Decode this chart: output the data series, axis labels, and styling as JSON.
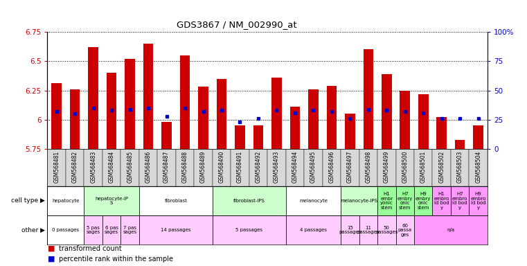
{
  "title": "GDS3867 / NM_002990_at",
  "samples": [
    "GSM568481",
    "GSM568482",
    "GSM568483",
    "GSM568484",
    "GSM568485",
    "GSM568486",
    "GSM568487",
    "GSM568488",
    "GSM568489",
    "GSM568490",
    "GSM568491",
    "GSM568492",
    "GSM568493",
    "GSM568494",
    "GSM568495",
    "GSM568496",
    "GSM568497",
    "GSM568498",
    "GSM568499",
    "GSM568500",
    "GSM568501",
    "GSM568502",
    "GSM568503",
    "GSM568504"
  ],
  "red_values": [
    6.31,
    6.26,
    6.62,
    6.4,
    6.52,
    6.65,
    5.98,
    6.55,
    6.28,
    6.35,
    5.95,
    5.95,
    6.36,
    6.11,
    6.26,
    6.29,
    6.05,
    6.6,
    6.39,
    6.25,
    6.22,
    6.02,
    5.83,
    5.95
  ],
  "blue_values": [
    6.07,
    6.05,
    6.1,
    6.08,
    6.09,
    6.1,
    6.03,
    6.1,
    6.07,
    6.08,
    5.98,
    6.01,
    6.08,
    6.06,
    6.08,
    6.07,
    6.01,
    6.09,
    6.08,
    6.07,
    6.06,
    6.01,
    6.01,
    6.01
  ],
  "ymin": 5.75,
  "ymax": 6.75,
  "yticks": [
    5.75,
    6.0,
    6.25,
    6.5,
    6.75
  ],
  "ytick_labels": [
    "5.75",
    "6",
    "6.25",
    "6.5",
    "6.75"
  ],
  "right_ytick_pcts": [
    0,
    25,
    50,
    75,
    100
  ],
  "right_ytick_labels": [
    "0",
    "25",
    "50",
    "75",
    "100%"
  ],
  "cell_types": [
    {
      "label": "hepatocyte",
      "start": 0,
      "end": 2,
      "color": "#ffffff"
    },
    {
      "label": "hepatocyte-iP\nS",
      "start": 2,
      "end": 5,
      "color": "#ccffcc"
    },
    {
      "label": "fibroblast",
      "start": 5,
      "end": 9,
      "color": "#ffffff"
    },
    {
      "label": "fibroblast-IPS",
      "start": 9,
      "end": 13,
      "color": "#ccffcc"
    },
    {
      "label": "melanocyte",
      "start": 13,
      "end": 16,
      "color": "#ffffff"
    },
    {
      "label": "melanocyte-IPS",
      "start": 16,
      "end": 18,
      "color": "#ccffcc"
    },
    {
      "label": "H1\nembr\nyonic\nstem",
      "start": 18,
      "end": 19,
      "color": "#99ff99"
    },
    {
      "label": "H7\nembry\nonic\nstem",
      "start": 19,
      "end": 20,
      "color": "#99ff99"
    },
    {
      "label": "H9\nembry\nonic\nstem",
      "start": 20,
      "end": 21,
      "color": "#99ff99"
    },
    {
      "label": "H1\nembro\nid bod\ny",
      "start": 21,
      "end": 22,
      "color": "#ff99ff"
    },
    {
      "label": "H7\nembro\nid bod\ny",
      "start": 22,
      "end": 23,
      "color": "#ff99ff"
    },
    {
      "label": "H9\nembro\nid bod\ny",
      "start": 23,
      "end": 24,
      "color": "#ff99ff"
    }
  ],
  "other_info": [
    {
      "label": "0 passages",
      "start": 0,
      "end": 2,
      "color": "#ffffff"
    },
    {
      "label": "5 pas\nsages",
      "start": 2,
      "end": 3,
      "color": "#ffccff"
    },
    {
      "label": "6 pas\nsages",
      "start": 3,
      "end": 4,
      "color": "#ffccff"
    },
    {
      "label": "7 pas\nsages",
      "start": 4,
      "end": 5,
      "color": "#ffccff"
    },
    {
      "label": "14 passages",
      "start": 5,
      "end": 9,
      "color": "#ffccff"
    },
    {
      "label": "5 passages",
      "start": 9,
      "end": 13,
      "color": "#ffccff"
    },
    {
      "label": "4 passages",
      "start": 13,
      "end": 16,
      "color": "#ffccff"
    },
    {
      "label": "15\npassages",
      "start": 16,
      "end": 17,
      "color": "#ffccff"
    },
    {
      "label": "11\npassages",
      "start": 17,
      "end": 18,
      "color": "#ffccff"
    },
    {
      "label": "50\npassages",
      "start": 18,
      "end": 19,
      "color": "#ffccff"
    },
    {
      "label": "60\npassa\nges",
      "start": 19,
      "end": 20,
      "color": "#ffccff"
    },
    {
      "label": "n/a",
      "start": 20,
      "end": 24,
      "color": "#ff99ff"
    }
  ],
  "bar_color": "#cc0000",
  "dot_color": "#0000cc",
  "legend_items": [
    {
      "color": "#cc0000",
      "label": "transformed count"
    },
    {
      "color": "#0000cc",
      "label": "percentile rank within the sample"
    }
  ]
}
